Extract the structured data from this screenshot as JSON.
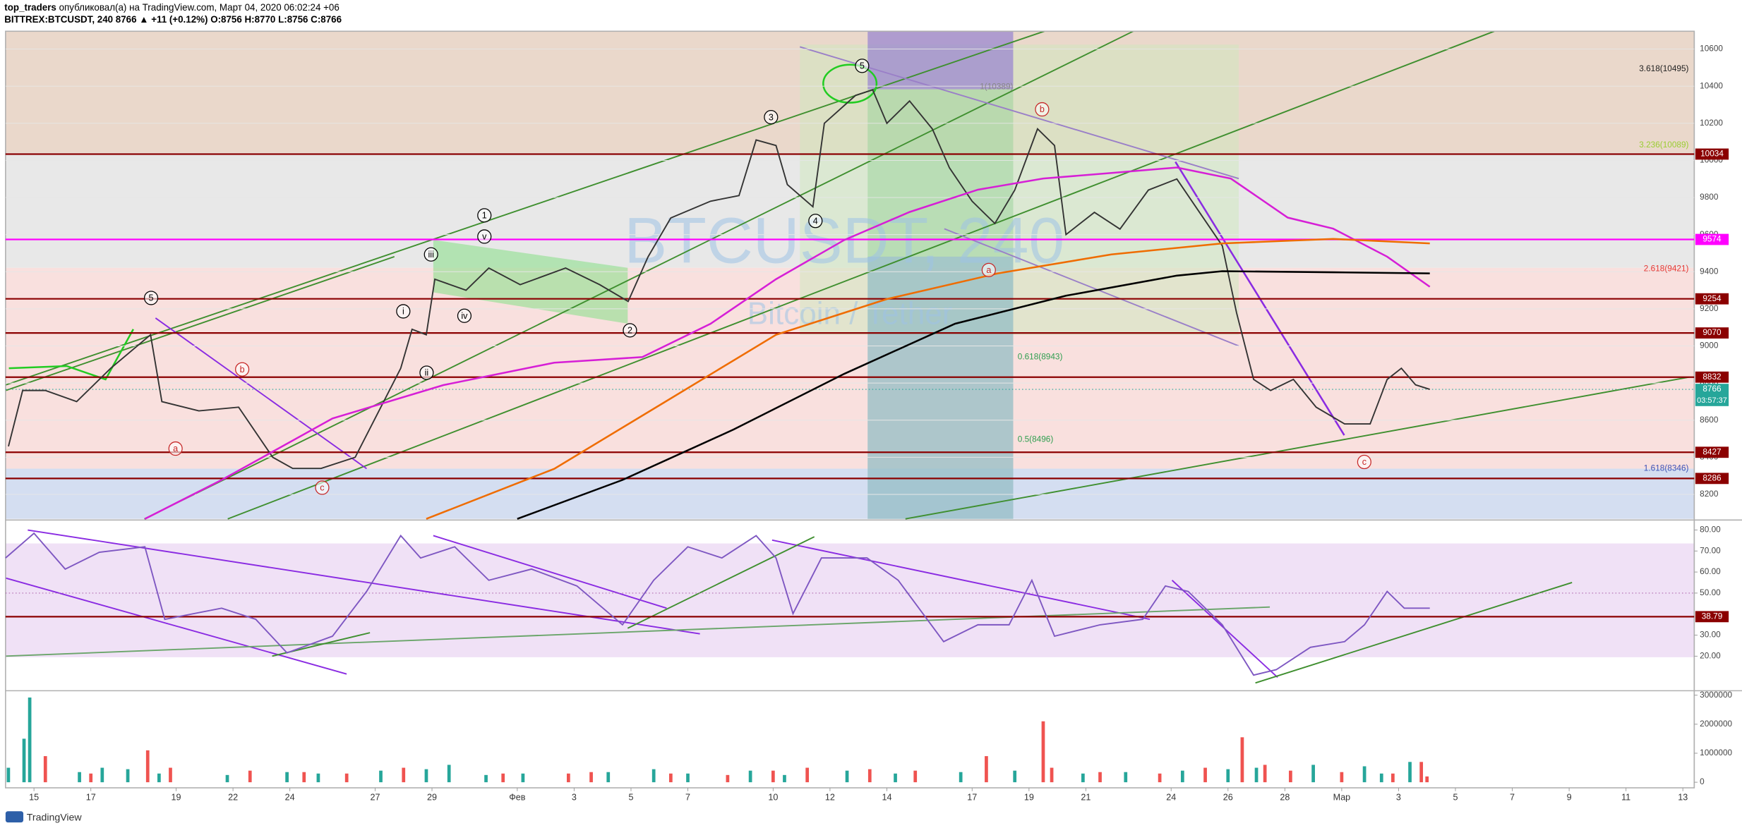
{
  "header": {
    "author": "top_traders",
    "published": "опубликовал(а) на TradingView.com, Март 04, 2020 06:02:24 +06",
    "symbol_line": "BITTREX:BTCUSDT, 240 8766 ▲ +11 (+0.12%) O:8756 H:8770 L:8756 C:8766"
  },
  "watermark": {
    "symbol": "BTCUSDT, 240",
    "pair": "Bitcoin / Tether"
  },
  "footer": "TradingView",
  "chart_data": [
    {
      "type": "line",
      "xlim": [
        -1,
        58.4
      ],
      "ylim": [
        8068,
        10696
      ],
      "yticks": [
        8200,
        8400,
        8600,
        8800,
        9000,
        9200,
        9400,
        9600,
        9800,
        10000,
        10200,
        10400,
        10600
      ],
      "grid": true,
      "series": [
        {
          "color": "#333333",
          "x": [
            -0.9,
            -0.4,
            0.4,
            1.5,
            2.7,
            4.1,
            4.5,
            5.8,
            7.2,
            8.4,
            9.1,
            10.1,
            11.3,
            12.1,
            12.9,
            13.3,
            13.8,
            14.1,
            15.2,
            16.0,
            17.1,
            18.7,
            19.9,
            20.9,
            21.6,
            22.4,
            23.8,
            24.8,
            25.4,
            26.1,
            26.5,
            27.4,
            27.8,
            28.9,
            29.5,
            30.0,
            30.8,
            31.6,
            32.2,
            33.0,
            33.8,
            34.5,
            35.3,
            35.9,
            36.3,
            37.3,
            38.2,
            39.2,
            40.2,
            41.0,
            41.8,
            42.3,
            42.9,
            43.5,
            44.3,
            45.1,
            46.1,
            47.0,
            47.6,
            48.1,
            48.6,
            49.1
          ],
          "values": [
            8459,
            8760,
            8760,
            8700,
            8880,
            9060,
            8700,
            8650,
            8670,
            8400,
            8340,
            8340,
            8400,
            8640,
            8880,
            9090,
            9060,
            9360,
            9300,
            9420,
            9330,
            9420,
            9330,
            9240,
            9480,
            9690,
            9780,
            9810,
            10110,
            10080,
            9870,
            9750,
            10200,
            10350,
            10380,
            10200,
            10320,
            10170,
            9960,
            9780,
            9660,
            9840,
            10170,
            10080,
            9600,
            9720,
            9630,
            9840,
            9900,
            9720,
            9540,
            9180,
            8820,
            8760,
            8820,
            8670,
            8580,
            8580,
            8820,
            8880,
            8790,
            8766
          ]
        },
        {
          "color": "#d61fd6",
          "x": [
            3.9,
            6.6,
            10.5,
            14.4,
            18.3,
            21.4,
            23.8,
            26.1,
            28.5,
            30.8,
            33.2,
            35.5,
            37.9,
            40.2,
            42.1,
            44.1,
            45.7,
            47.6,
            49.1
          ],
          "values": [
            8068,
            8278,
            8609,
            8789,
            8910,
            8940,
            9120,
            9360,
            9571,
            9722,
            9842,
            9902,
            9932,
            9962,
            9902,
            9692,
            9632,
            9481,
            9319
          ]
        },
        {
          "color": "#ef6c00",
          "x": [
            13.8,
            18.3,
            22.2,
            26.1,
            30.0,
            33.9,
            37.9,
            41.8,
            45.7,
            49.1
          ],
          "values": [
            8068,
            8338,
            8699,
            9060,
            9253,
            9391,
            9493,
            9553,
            9577,
            9553
          ]
        },
        {
          "color": "#000000",
          "x": [
            17.0,
            20.7,
            24.6,
            28.5,
            32.4,
            36.3,
            40.2,
            41.8,
            45.7,
            49.1
          ],
          "values": [
            8068,
            8278,
            8549,
            8850,
            9120,
            9271,
            9379,
            9403,
            9397,
            9391
          ]
        }
      ],
      "levels": [
        {
          "value": 10034,
          "color": "#8b0000"
        },
        {
          "value": 9574,
          "color": "#ff00ff"
        },
        {
          "value": 9254,
          "color": "#8b0000"
        },
        {
          "value": 9070,
          "color": "#8b0000"
        },
        {
          "value": 8832,
          "color": "#8b0000"
        },
        {
          "value": 8427,
          "color": "#8b0000"
        },
        {
          "value": 8286,
          "color": "#8b0000"
        }
      ],
      "current": {
        "value": 8766,
        "countdown": "03:57:37",
        "color": "#26a69a"
      },
      "fib_labels": [
        {
          "text": "3.618(10495)",
          "color": "#222222"
        },
        {
          "text": "3.236(10089)",
          "color": "#9acd32"
        },
        {
          "text": "2.618(9421)",
          "color": "#e53935"
        },
        {
          "text": "1.618(8346)",
          "color": "#3f51b5"
        },
        {
          "text": "1(10389)",
          "color": "#888888"
        },
        {
          "text": "0.618(8943)",
          "color": "#2e9e4f"
        },
        {
          "text": "0.5(8496)",
          "color": "#2e9e4f"
        }
      ],
      "annotations": [
        {
          "text": "5",
          "color": "#000000"
        },
        {
          "text": "3",
          "color": "#000000"
        },
        {
          "text": "4",
          "color": "#000000"
        },
        {
          "text": "1",
          "color": "#000000"
        },
        {
          "text": "v",
          "color": "#000000"
        },
        {
          "text": "iii",
          "color": "#000000"
        },
        {
          "text": "i",
          "color": "#000000"
        },
        {
          "text": "ii",
          "color": "#000000"
        },
        {
          "text": "iv",
          "color": "#000000"
        },
        {
          "text": "2",
          "color": "#000000"
        },
        {
          "text": "5",
          "color": "#000000"
        },
        {
          "text": "b",
          "color": "#c62828"
        },
        {
          "text": "a",
          "color": "#c62828"
        },
        {
          "text": "c",
          "color": "#c62828"
        },
        {
          "text": "a",
          "color": "#c62828"
        },
        {
          "text": "b",
          "color": "#c62828"
        },
        {
          "text": "c",
          "color": "#c62828"
        }
      ]
    },
    {
      "type": "line",
      "xlim": [
        -1,
        58.4
      ],
      "ylim": [
        4.1,
        84.2
      ],
      "yticks": [
        {
          "value": 20,
          "label": "20.00"
        },
        {
          "value": 30,
          "label": "30.00"
        },
        {
          "value": 50,
          "label": "50.00"
        },
        {
          "value": 60,
          "label": "60.00"
        },
        {
          "value": 70,
          "label": "70.00"
        },
        {
          "value": 80,
          "label": "80.00"
        }
      ],
      "series": [
        {
          "color": "#7e57c2",
          "x": [
            -1.0,
            0.0,
            1.1,
            2.3,
            3.9,
            4.6,
            6.6,
            7.8,
            8.9,
            10.5,
            11.7,
            12.9,
            13.6,
            14.8,
            16.0,
            17.5,
            19.1,
            20.7,
            21.8,
            23.0,
            24.2,
            25.4,
            26.1,
            26.7,
            27.7,
            29.3,
            30.4,
            32.0,
            33.2,
            34.3,
            35.1,
            35.9,
            37.5,
            39.0,
            39.8,
            40.6,
            41.8,
            42.9,
            43.7,
            44.9,
            46.1,
            46.8,
            47.6,
            48.2,
            49.1
          ],
          "values": [
            66.7,
            78.4,
            61.4,
            69.4,
            72,
            37.5,
            42.8,
            37.5,
            21.6,
            29.5,
            50.8,
            77.3,
            66.7,
            72,
            56.1,
            61.4,
            53.4,
            34.9,
            56.1,
            72,
            66.7,
            77.3,
            66.7,
            40.2,
            66.7,
            66.7,
            56.1,
            26.9,
            34.9,
            34.9,
            56.1,
            29.5,
            34.9,
            37.5,
            53.4,
            50.8,
            34.9,
            11,
            13.6,
            24.2,
            26.9,
            34.9,
            50.8,
            42.8,
            42.8
          ]
        }
      ],
      "levels": [
        {
          "value": 38.79,
          "label": "38.79",
          "color": "#8b0000"
        }
      ]
    },
    {
      "type": "bar",
      "xlim": [
        -1,
        58.4
      ],
      "ylim": [
        -154000,
        3115000
      ],
      "yticks": [
        0,
        1000000,
        2000000,
        3000000
      ],
      "xticks": [
        {
          "value": 0,
          "label": "15"
        },
        {
          "value": 2,
          "label": "17"
        },
        {
          "value": 5,
          "label": "19"
        },
        {
          "value": 7,
          "label": "22"
        },
        {
          "value": 9,
          "label": "24"
        },
        {
          "value": 12,
          "label": "27"
        },
        {
          "value": 14,
          "label": "29"
        },
        {
          "value": 17,
          "label": "Фев"
        },
        {
          "value": 19,
          "label": "3"
        },
        {
          "value": 21,
          "label": "5"
        },
        {
          "value": 23,
          "label": "7"
        },
        {
          "value": 26,
          "label": "10"
        },
        {
          "value": 28,
          "label": "12"
        },
        {
          "value": 30,
          "label": "14"
        },
        {
          "value": 33,
          "label": "17"
        },
        {
          "value": 35,
          "label": "19"
        },
        {
          "value": 37,
          "label": "21"
        },
        {
          "value": 40,
          "label": "24"
        },
        {
          "value": 42,
          "label": "26"
        },
        {
          "value": 44,
          "label": "28"
        },
        {
          "value": 46,
          "label": "Мар"
        },
        {
          "value": 48,
          "label": "3"
        },
        {
          "value": 50,
          "label": "5"
        },
        {
          "value": 52,
          "label": "7"
        },
        {
          "value": 54,
          "label": "9"
        },
        {
          "value": 56,
          "label": "11"
        },
        {
          "value": 58,
          "label": "13"
        }
      ],
      "series": [
        {
          "color": "#26a69a",
          "x": [
            -0.9,
            -0.35,
            -0.15,
            1.6,
            2.4,
            3.3,
            4.4,
            6.8,
            8.9,
            10.0,
            12.2,
            13.8,
            14.6,
            15.9,
            17.2,
            20.2,
            21.8,
            23.0,
            25.2,
            26.4,
            28.6,
            30.3,
            32.6,
            34.5,
            36.9,
            38.4,
            40.4,
            42.0,
            43.0,
            45.0,
            46.8,
            47.4,
            48.4
          ],
          "values": [
            500000,
            1500000,
            2920000,
            350000,
            500000,
            450000,
            300000,
            250000,
            350000,
            300000,
            400000,
            450000,
            600000,
            250000,
            300000,
            350000,
            450000,
            300000,
            400000,
            250000,
            400000,
            300000,
            350000,
            400000,
            300000,
            350000,
            400000,
            450000,
            500000,
            600000,
            550000,
            300000,
            700000
          ]
        },
        {
          "color": "#ef5350",
          "x": [
            0.4,
            2.0,
            4.0,
            4.8,
            7.6,
            9.5,
            11.0,
            13.0,
            16.5,
            18.8,
            19.6,
            22.4,
            24.4,
            26.0,
            27.2,
            29.4,
            31.0,
            33.5,
            35.5,
            35.8,
            37.5,
            39.6,
            41.2,
            42.5,
            43.3,
            44.2,
            46.0,
            47.8,
            48.8,
            49.0
          ],
          "values": [
            900000,
            300000,
            1100000,
            500000,
            400000,
            350000,
            300000,
            500000,
            300000,
            300000,
            350000,
            300000,
            250000,
            400000,
            500000,
            450000,
            400000,
            900000,
            2100000,
            500000,
            350000,
            300000,
            500000,
            1550000,
            600000,
            400000,
            350000,
            300000,
            700000,
            200000
          ]
        }
      ]
    }
  ]
}
